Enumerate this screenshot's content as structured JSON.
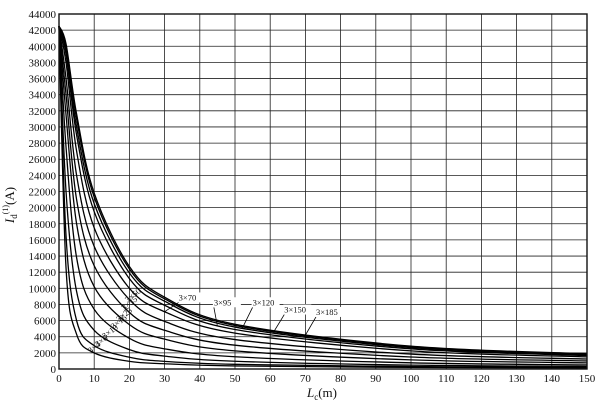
{
  "chart_data": {
    "type": "line",
    "title": "",
    "xlabel": "L",
    "xlabel_sub": "c",
    "xlabel_unit": "(m)",
    "ylabel": "I",
    "ylabel_sub": "d",
    "ylabel_sup": "(1)",
    "ylabel_unit": "(A)",
    "xlim": [
      0,
      150
    ],
    "ylim": [
      0,
      44000
    ],
    "x_ticks": [
      0,
      10,
      20,
      30,
      40,
      50,
      60,
      70,
      80,
      90,
      100,
      110,
      120,
      130,
      140,
      150
    ],
    "y_ticks": [
      0,
      2000,
      4000,
      6000,
      8000,
      10000,
      12000,
      14000,
      16000,
      18000,
      20000,
      22000,
      24000,
      26000,
      28000,
      30000,
      32000,
      34000,
      36000,
      38000,
      40000,
      42000,
      44000
    ],
    "grid": true,
    "legend": "none",
    "series": [
      {
        "name": "3×4",
        "x": [
          0,
          2,
          5,
          10,
          20,
          30,
          50,
          100,
          150
        ],
        "y": [
          42500,
          12500,
          4300,
          2000,
          950,
          650,
          380,
          200,
          140
        ]
      },
      {
        "name": "3×6",
        "x": [
          0,
          2,
          5,
          10,
          20,
          30,
          50,
          100,
          150
        ],
        "y": [
          42500,
          16500,
          6000,
          2900,
          1450,
          950,
          580,
          300,
          200
        ]
      },
      {
        "name": "3×10",
        "x": [
          0,
          2,
          5,
          10,
          20,
          30,
          50,
          100,
          150
        ],
        "y": [
          42500,
          22000,
          9600,
          4800,
          2400,
          1600,
          960,
          480,
          320
        ]
      },
      {
        "name": "3×16",
        "x": [
          0,
          2,
          5,
          10,
          20,
          30,
          50,
          100,
          150
        ],
        "y": [
          42500,
          27500,
          13800,
          7400,
          3800,
          2500,
          1520,
          770,
          510
        ]
      },
      {
        "name": "3×25",
        "x": [
          0,
          2,
          5,
          10,
          20,
          30,
          50,
          100,
          150
        ],
        "y": [
          42500,
          31500,
          18000,
          10200,
          5500,
          3700,
          2250,
          1130,
          760
        ]
      },
      {
        "name": "3×35",
        "x": [
          0,
          2,
          5,
          10,
          20,
          30,
          50,
          100,
          150
        ],
        "y": [
          42500,
          34000,
          21000,
          12800,
          7000,
          4800,
          2950,
          1490,
          1000
        ]
      },
      {
        "name": "3×50",
        "x": [
          0,
          2,
          5,
          10,
          20,
          30,
          50,
          100,
          150
        ],
        "y": [
          42500,
          36000,
          24000,
          15200,
          8600,
          5900,
          3650,
          1850,
          1240
        ]
      },
      {
        "name": "3×70",
        "x": [
          0,
          2,
          5,
          10,
          20,
          30,
          50,
          100,
          150
        ],
        "y": [
          42500,
          38000,
          27000,
          17500,
          10000,
          7100,
          4450,
          2250,
          1500
        ]
      },
      {
        "name": "3×95",
        "x": [
          0,
          2,
          5,
          10,
          20,
          30,
          50,
          100,
          150
        ],
        "y": [
          42500,
          39000,
          29000,
          19500,
          11200,
          7900,
          4900,
          2500,
          1670
        ]
      },
      {
        "name": "3×120",
        "x": [
          0,
          2,
          5,
          10,
          20,
          30,
          50,
          100,
          150
        ],
        "y": [
          42500,
          39500,
          30000,
          20500,
          11900,
          8400,
          5200,
          2650,
          1770
        ]
      },
      {
        "name": "3×150",
        "x": [
          0,
          2,
          5,
          10,
          20,
          30,
          50,
          100,
          150
        ],
        "y": [
          42500,
          40000,
          31000,
          21300,
          12400,
          8700,
          5400,
          2750,
          1840
        ]
      },
      {
        "name": "3×185",
        "x": [
          0,
          2,
          5,
          10,
          20,
          30,
          50,
          100,
          150
        ],
        "y": [
          42500,
          40300,
          31600,
          21800,
          12700,
          8900,
          5550,
          2830,
          1890
        ]
      }
    ],
    "annotations": [
      {
        "text": "3×70",
        "x": 34,
        "y": 8500,
        "target_x": 30,
        "target_y": 7100,
        "rotate": 0
      },
      {
        "text": "3×95",
        "x": 44,
        "y": 7900,
        "target_x": 45,
        "target_y": 5300,
        "rotate": 0
      },
      {
        "text": "3×120",
        "x": 55,
        "y": 7900,
        "target_x": 52,
        "target_y": 5000,
        "rotate": 0
      },
      {
        "text": "3×150",
        "x": 64,
        "y": 7000,
        "target_x": 61,
        "target_y": 4600,
        "rotate": 0
      },
      {
        "text": "3×185",
        "x": 73,
        "y": 6700,
        "target_x": 70,
        "target_y": 4200,
        "rotate": 0
      },
      {
        "text": "3×50",
        "x": 19.5,
        "y": 8200,
        "target_x": 0,
        "target_y": 0,
        "rotate": -38
      },
      {
        "text": "3×35",
        "x": 18.5,
        "y": 7200,
        "target_x": 0,
        "target_y": 0,
        "rotate": -38
      },
      {
        "text": "3×25",
        "x": 17,
        "y": 5800,
        "target_x": 0,
        "target_y": 0,
        "rotate": -38
      },
      {
        "text": "3×16",
        "x": 15.5,
        "y": 4900,
        "target_x": 0,
        "target_y": 0,
        "rotate": -38
      },
      {
        "text": "3×10",
        "x": 13,
        "y": 3700,
        "target_x": 0,
        "target_y": 0,
        "rotate": -38
      },
      {
        "text": "3×6",
        "x": 11,
        "y": 2700,
        "target_x": 0,
        "target_y": 0,
        "rotate": -38
      },
      {
        "text": "3×4",
        "x": 9,
        "y": 1900,
        "target_x": 0,
        "target_y": 0,
        "rotate": -38
      }
    ]
  }
}
